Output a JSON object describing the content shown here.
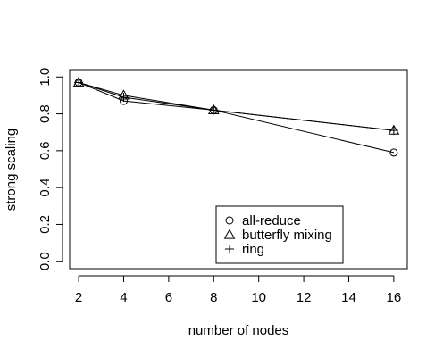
{
  "chart_data": {
    "type": "line",
    "title": "",
    "xlabel": "number of nodes",
    "ylabel": "strong scaling",
    "x": [
      2,
      4,
      8,
      16
    ],
    "xticks": [
      2,
      4,
      6,
      8,
      10,
      12,
      14,
      16
    ],
    "xtick_labels": [
      "2",
      "4",
      "6",
      "8",
      "10",
      "12",
      "14",
      "16"
    ],
    "yticks": [
      0.0,
      0.2,
      0.4,
      0.6,
      0.8,
      1.0
    ],
    "ytick_labels": [
      "0.0",
      "0.2",
      "0.4",
      "0.6",
      "0.8",
      "1.0"
    ],
    "xlim": [
      1.6,
      16.6
    ],
    "ylim": [
      -0.04,
      1.04
    ],
    "grid": false,
    "legend_position": "bottom-center",
    "colors": {
      "line": "#000000",
      "background": "#ffffff"
    },
    "series": [
      {
        "name": "all-reduce",
        "marker": "circle",
        "values": [
          0.97,
          0.87,
          0.82,
          0.59
        ]
      },
      {
        "name": "butterfly mixing",
        "marker": "triangle",
        "values": [
          0.97,
          0.9,
          0.82,
          0.71
        ]
      },
      {
        "name": "ring",
        "marker": "plus",
        "values": [
          0.97,
          0.89,
          0.82,
          0.71
        ]
      }
    ]
  }
}
